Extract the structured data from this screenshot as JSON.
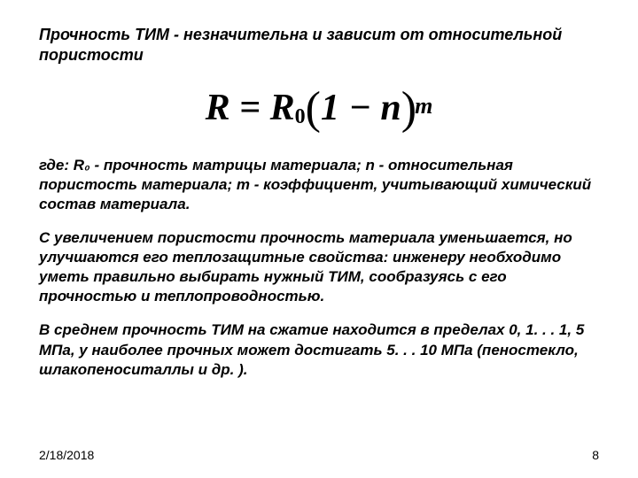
{
  "title": "Прочность ТИМ - незначительна и зависит от относительной пористости",
  "formula": {
    "R": "R",
    "eq": " = ",
    "R0_base": "R",
    "R0_sub": "0",
    "lparen": "(",
    "one": "1",
    "minus": " − ",
    "n": "n",
    "rparen": ")",
    "m": "m"
  },
  "para1": "где: R₀ - прочность матрицы материала; n - относительная пористость материала; m - коэффициент, учитывающий химический состав материала.",
  "para2": "С увеличением пористости прочность материала уменьшается, но улучшаются его теплозащитные свойства: инженеру необходимо уметь правильно выбирать нужный ТИМ, сообразуясь с его прочностью и теплопроводностью.",
  "para3": "В среднем прочность ТИМ на сжатие находится в пределах 0, 1. . . 1, 5 МПа, у наиболее прочных может достигать 5. . . 10 МПа (пеностекло, шлакопеноситаллы и др. ).",
  "footer": {
    "date": "2/18/2018",
    "page": "8"
  },
  "style": {
    "background_color": "#ffffff",
    "text_color": "#000000",
    "title_fontsize": 18,
    "body_fontsize": 17,
    "footer_fontsize": 14,
    "formula_fontsize": 42,
    "font_family_body": "Arial",
    "font_family_formula": "Times New Roman"
  }
}
